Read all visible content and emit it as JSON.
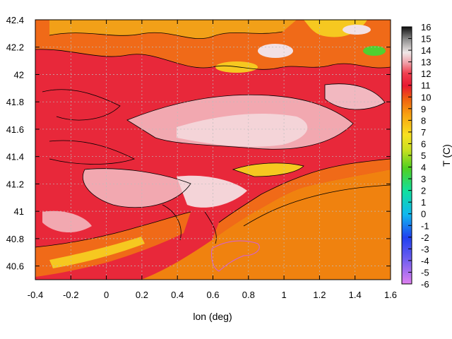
{
  "chart_data": {
    "type": "heatmap",
    "xlabel": "lon (deg)",
    "ylabel": "",
    "colorbar_label": "T (C)",
    "xlim": [
      -0.4,
      1.6
    ],
    "ylim": [
      40.5,
      42.4
    ],
    "xticks": [
      "-0.4",
      "-0.2",
      "0",
      "0.2",
      "0.4",
      "0.6",
      "0.8",
      "1",
      "1.2",
      "1.4",
      "1.6"
    ],
    "yticks": [
      "40.6",
      "40.8",
      "41",
      "41.2",
      "41.4",
      "41.6",
      "41.8",
      "42",
      "42.2",
      "42.4"
    ],
    "colorbar_range": [
      -6,
      16
    ],
    "colorbar_ticks": [
      "-6",
      "-5",
      "-4",
      "-3",
      "-2",
      "-1",
      "0",
      "1",
      "2",
      "3",
      "4",
      "5",
      "6",
      "7",
      "8",
      "9",
      "10",
      "11",
      "12",
      "13",
      "14",
      "15",
      "16"
    ],
    "grid": true,
    "contours": true,
    "colors": {
      "sea": "#f0820f",
      "lowland": "#e8283a",
      "upland": "#f4c0c0",
      "mountain": "#f2b020"
    }
  }
}
